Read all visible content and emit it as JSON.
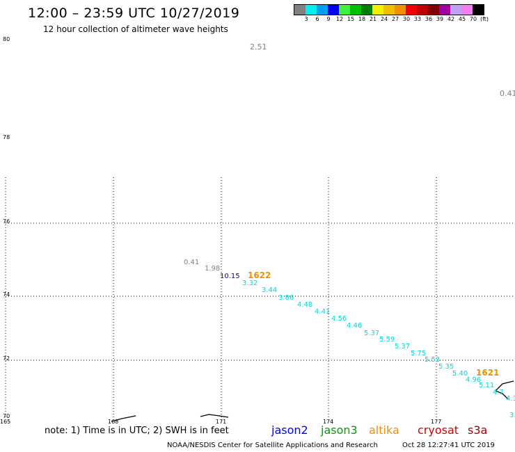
{
  "header": {
    "title": "12:00 – 23:59 UTC 10/27/2019",
    "subtitle": "12 hour collection of altimeter wave heights"
  },
  "color_scale": {
    "colors": [
      "#808080",
      "#00f0f0",
      "#00a0f0",
      "#0000f0",
      "#40f040",
      "#00c000",
      "#008000",
      "#f0f000",
      "#f0c000",
      "#f09000",
      "#f00000",
      "#c00000",
      "#800000",
      "#a000a0",
      "#c0a0f0",
      "#f080f0",
      "#000000"
    ],
    "labels": [
      "3",
      "6",
      "9",
      "12",
      "15",
      "18",
      "21",
      "24",
      "27",
      "30",
      "33",
      "36",
      "39",
      "42",
      "45",
      "70",
      "(ft)"
    ]
  },
  "axes": {
    "lat_labels": [
      "80",
      "78",
      "76",
      "74",
      "72",
      "70"
    ],
    "lon_labels": [
      "165",
      "168",
      "171",
      "174",
      "177"
    ]
  },
  "observations": {
    "top": [
      {
        "text": "2.51",
        "color": "#808080"
      },
      {
        "text": "0.41",
        "color": "#808080"
      }
    ],
    "track": [
      {
        "text": "0.41",
        "color": "#808080"
      },
      {
        "text": "1.98",
        "color": "#808080"
      },
      {
        "text": "10.15",
        "color": "#0000c8"
      },
      {
        "text": "3.32",
        "color": "#00d8d8"
      },
      {
        "text": "3.44",
        "color": "#00d8d8"
      },
      {
        "text": "3.86",
        "color": "#00d8d8"
      },
      {
        "text": "4.48",
        "color": "#00d8d8"
      },
      {
        "text": "4.41",
        "color": "#00d8d8"
      },
      {
        "text": "4.56",
        "color": "#00d8d8"
      },
      {
        "text": "4.46",
        "color": "#00d8d8"
      },
      {
        "text": "5.37",
        "color": "#00d8d8"
      },
      {
        "text": "5.59",
        "color": "#00d8d8"
      },
      {
        "text": "5.37",
        "color": "#00d8d8"
      },
      {
        "text": "5.75",
        "color": "#00d8d8"
      },
      {
        "text": "5.53",
        "color": "#00d8d8"
      },
      {
        "text": "5.35",
        "color": "#00d8d8"
      },
      {
        "text": "5.40",
        "color": "#00d8d8"
      },
      {
        "text": "4.96",
        "color": "#00d8d8"
      },
      {
        "text": "5.11",
        "color": "#00d8d8"
      },
      {
        "text": "4.7",
        "color": "#00d8d8"
      },
      {
        "text": "4.3",
        "color": "#00d8d8"
      },
      {
        "text": "3.",
        "color": "#00d8d8"
      }
    ],
    "time_stamps": [
      {
        "text": "1622",
        "color": "#f09000"
      },
      {
        "text": "1621",
        "color": "#f09000"
      }
    ]
  },
  "legend": {
    "note": "note: 1) Time is in UTC; 2) SWH is in feet",
    "satellites": [
      {
        "name": "jason2",
        "color": "#0000f0"
      },
      {
        "name": "jason3",
        "color": "#00a000"
      },
      {
        "name": "altika",
        "color": "#f09000"
      },
      {
        "name": "cryosat",
        "color": "#d00000"
      },
      {
        "name": "s3a",
        "color": "#a00000"
      }
    ]
  },
  "footer": {
    "credit": "NOAA/NESDIS Center for Satellite Applications and Research",
    "timestamp": "Oct 28 12:27:41 UTC 2019"
  }
}
